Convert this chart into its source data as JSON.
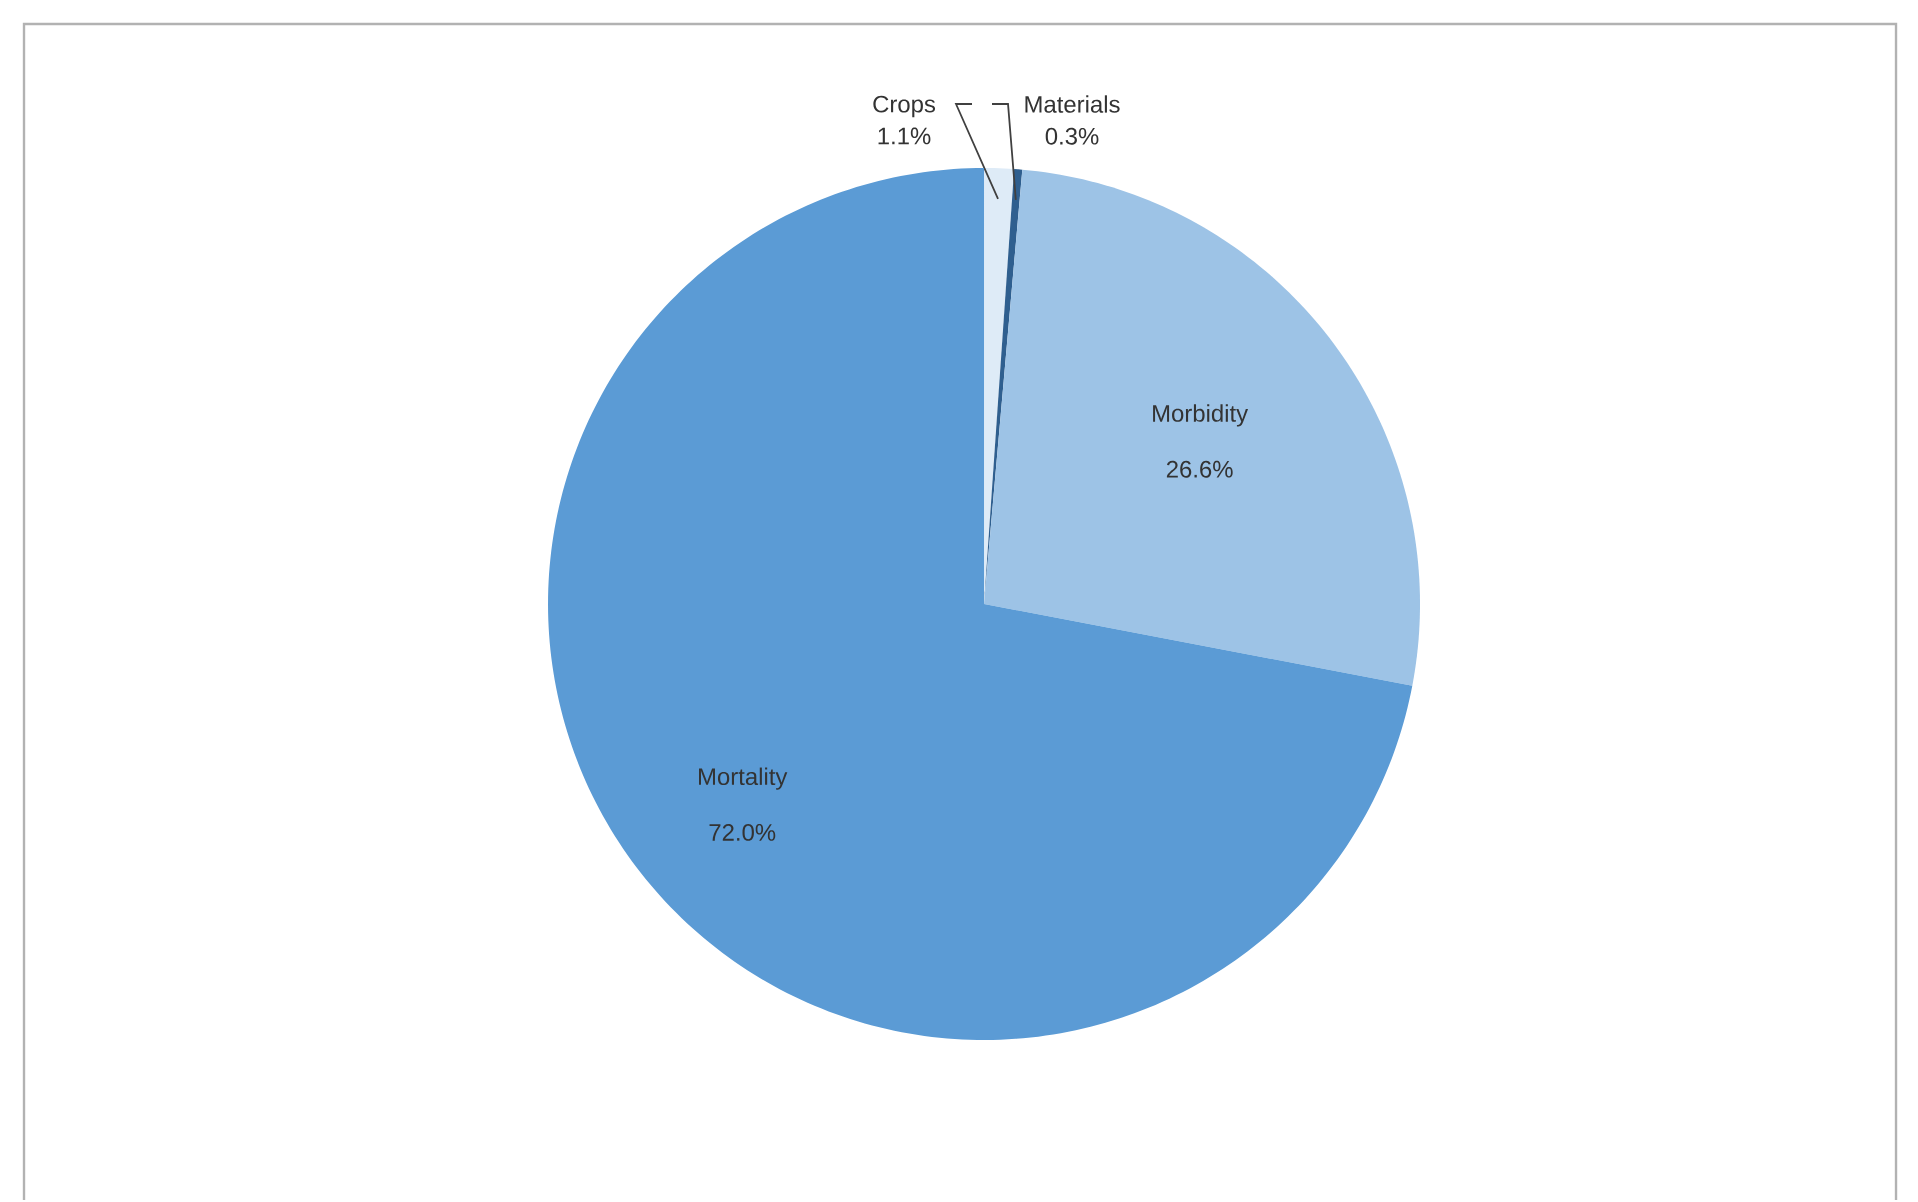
{
  "chart_data": {
    "type": "pie",
    "categories": [
      "Crops",
      "Materials",
      "Morbidity",
      "Mortality"
    ],
    "values": [
      1.1,
      0.3,
      26.6,
      72.0
    ],
    "value_labels": [
      "1.1%",
      "0.3%",
      "26.6%",
      "72.0%"
    ],
    "colors": [
      "#deebf7",
      "#2f5f8f",
      "#9dc3e6",
      "#5b9bd5"
    ]
  }
}
